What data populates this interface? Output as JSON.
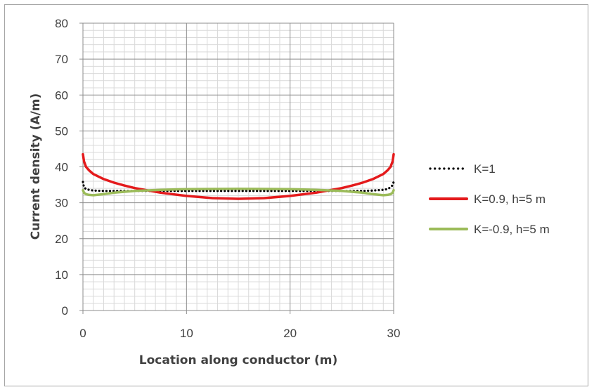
{
  "chart_data": {
    "type": "line",
    "xlabel": "Location along conductor (m)",
    "ylabel": "Current density (A/m)",
    "xlim": [
      0,
      30
    ],
    "ylim": [
      0,
      80
    ],
    "x_ticks": [
      "0",
      "10",
      "20",
      "30"
    ],
    "y_ticks": [
      "0",
      "10",
      "20",
      "30",
      "40",
      "50",
      "60",
      "70",
      "80"
    ],
    "grid": "major and minor",
    "legend_position": "right",
    "series": [
      {
        "name": "K=1",
        "color": "#000000",
        "style": "dotted",
        "x": [
          0,
          0.1,
          0.3,
          0.6,
          1,
          2,
          3,
          5,
          10,
          15,
          20,
          25,
          27,
          28,
          29,
          29.4,
          29.7,
          29.9,
          30
        ],
        "y": [
          35.8,
          34.3,
          33.8,
          33.6,
          33.4,
          33.3,
          33.3,
          33.3,
          33.3,
          33.3,
          33.3,
          33.3,
          33.3,
          33.4,
          33.6,
          33.8,
          34.3,
          34.9,
          35.8
        ]
      },
      {
        "name": "K=0.9, h=5 m",
        "color": "#e41a1c",
        "style": "solid",
        "x": [
          0,
          0.1,
          0.3,
          0.6,
          1,
          2,
          3,
          4,
          5,
          7.5,
          10,
          12.5,
          15,
          17.5,
          20,
          22.5,
          25,
          26,
          27,
          28,
          29,
          29.4,
          29.7,
          29.9,
          30
        ],
        "y": [
          43.5,
          41.5,
          40.0,
          39.0,
          38.0,
          36.6,
          35.6,
          34.8,
          34.1,
          32.8,
          31.9,
          31.3,
          31.1,
          31.3,
          31.9,
          32.8,
          34.1,
          34.8,
          35.6,
          36.6,
          38.0,
          39.0,
          40.0,
          41.5,
          43.5
        ]
      },
      {
        "name": "K=-0.9, h=5 m",
        "color": "#9bbb59",
        "style": "solid",
        "x": [
          0,
          0.1,
          0.3,
          0.6,
          1,
          2,
          3,
          5,
          7.5,
          10,
          15,
          20,
          22.5,
          25,
          27,
          28,
          29,
          29.4,
          29.7,
          29.9,
          30
        ],
        "y": [
          33.5,
          32.8,
          32.4,
          32.2,
          32.1,
          32.4,
          32.8,
          33.3,
          33.6,
          33.8,
          33.9,
          33.8,
          33.6,
          33.3,
          32.8,
          32.4,
          32.1,
          32.2,
          32.4,
          32.8,
          33.5
        ]
      }
    ]
  }
}
